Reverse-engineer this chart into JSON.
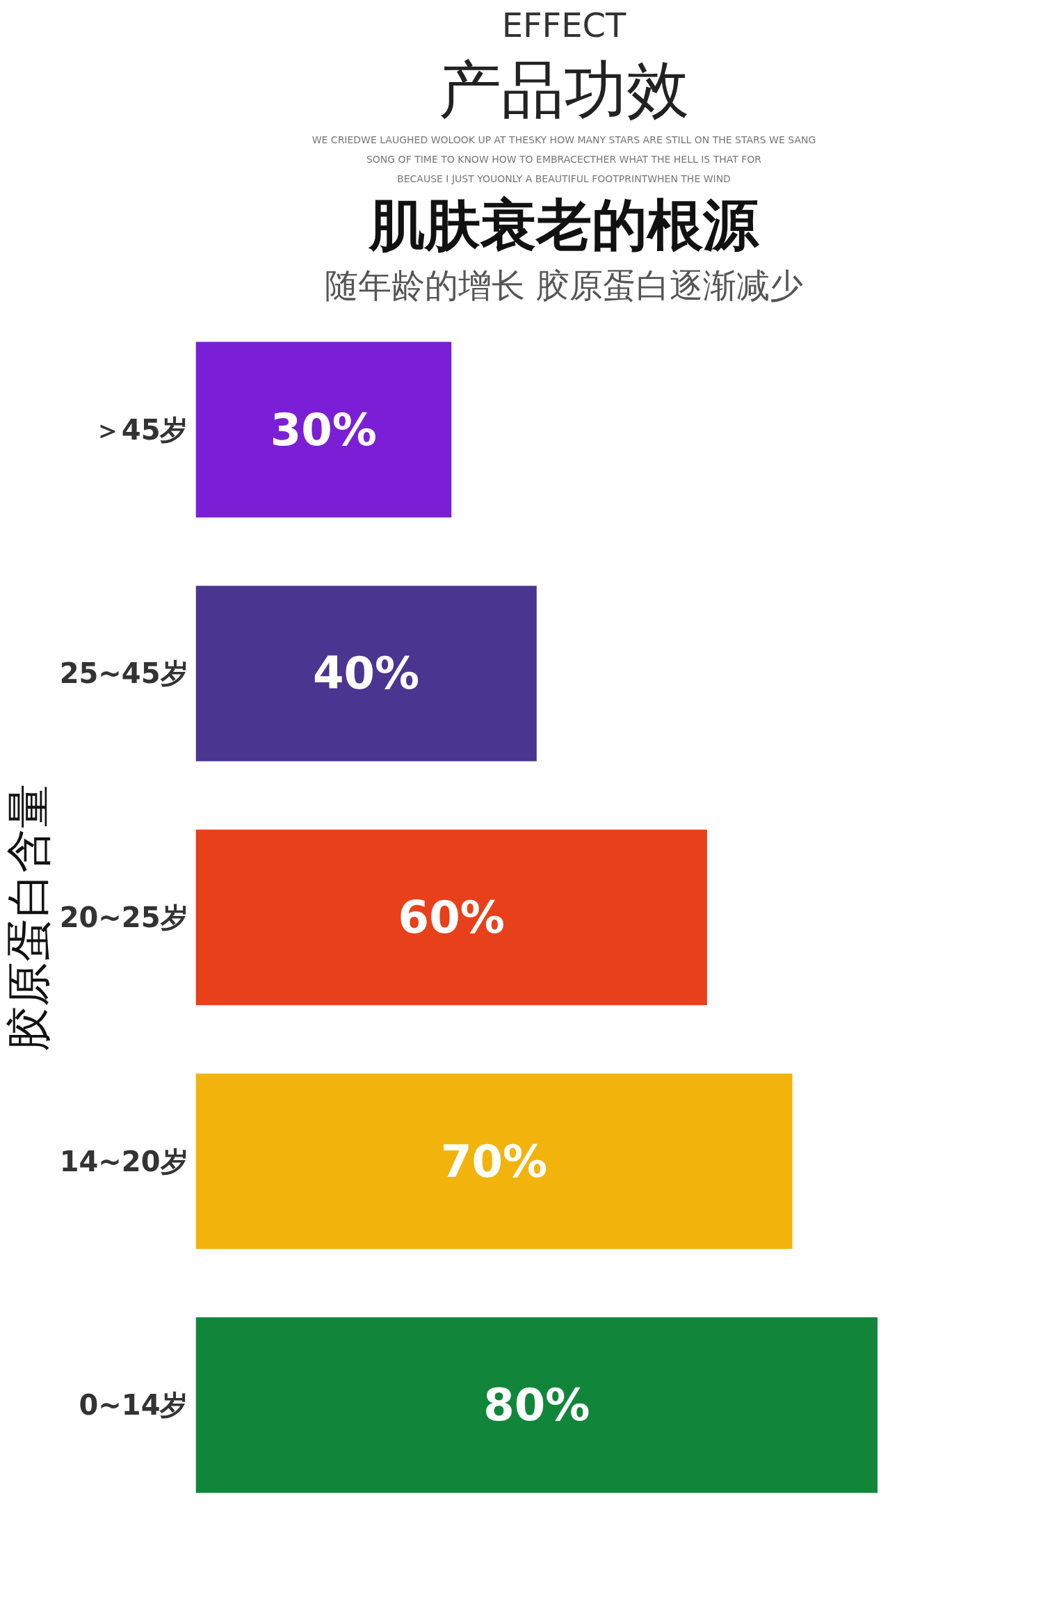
{
  "chart_data": {
    "type": "bar",
    "orientation": "horizontal",
    "title": "产品功效",
    "subtitle": "随年龄的增长 胶原蛋白逐渐减少",
    "annotations": [
      "EFFECT",
      "WE CRIEDWE LAUGHED WOLOOK UP AT THESKY HOW MANY STARS ARE STILL ON THE STARS WE SANG",
      "SONG OF TIME TO KNOW HOW TO EMBRACECTHER WHAT THE HELL IS THAT FOR",
      "BECAUSE I JUST YOUONLY A BEAUTIFUL FOOTPRINTWHEN THE WIND",
      "肌肤衰老的根源"
    ],
    "ylabel": "胶原蛋白含量",
    "categories": [
      "＞45岁",
      "25~45岁",
      "20~25岁",
      "14~20岁",
      "0~14岁"
    ],
    "values": [
      30,
      40,
      60,
      70,
      80
    ],
    "colors": [
      "#7a1fd6",
      "#4a3590",
      "#e8401a",
      "#f2b40c",
      "#11863a"
    ],
    "value_labels": [
      "30%",
      "40%",
      "60%",
      "70%",
      "80%"
    ]
  }
}
